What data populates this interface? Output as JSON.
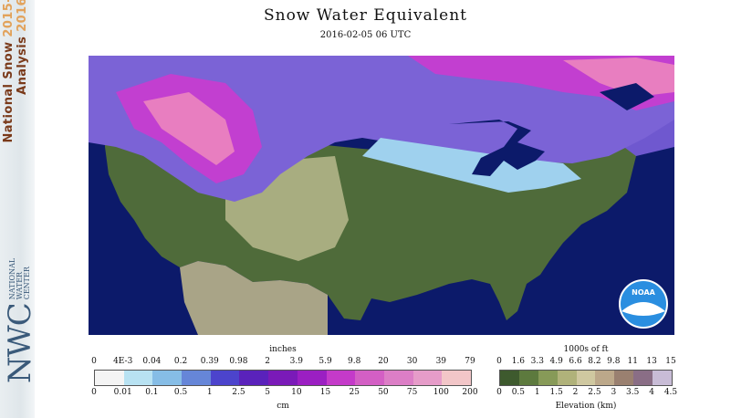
{
  "header": {
    "title": "Snow Water Equivalent",
    "datetime": "2016-02-05 06 UTC"
  },
  "sidebar": {
    "title_line1": "National Snow",
    "title_year1": "2015-",
    "title_line2": "Analysis",
    "title_year2": "2016",
    "org_abbr": "NWC",
    "org_line1": "NATIONAL",
    "org_line2": "WATER",
    "org_line3": "CENTER"
  },
  "map": {
    "logo_text": "NOAA",
    "colors": {
      "ocean": "#0c1a6a",
      "lowland": "#4f6b3a",
      "plains": "#a8ad80",
      "snow_light": "#9fd1ee",
      "snow_mid": "#7b63d6",
      "snow_heavy": "#c23fd0",
      "snow_deep": "#e87ec0"
    }
  },
  "swe_legend": {
    "top_unit": "inches",
    "top_labels": [
      "0",
      "4E-3",
      "0.04",
      "0.2",
      "0.39",
      "0.98",
      "2",
      "3.9",
      "5.9",
      "9.8",
      "20",
      "30",
      "39",
      "79"
    ],
    "bottom_unit": "cm",
    "bottom_labels": [
      "0",
      "0.01",
      "0.1",
      "0.5",
      "1",
      "2.5",
      "5",
      "10",
      "15",
      "25",
      "50",
      "75",
      "100",
      "200"
    ],
    "colors": [
      "#f4f4f4",
      "#b8e2f2",
      "#86bde6",
      "#6686d8",
      "#4c44cc",
      "#5a22bb",
      "#7a1ab8",
      "#9b1fc2",
      "#c43ac9",
      "#d35fc4",
      "#dc7ec6",
      "#e69cc9",
      "#f2c6c8"
    ]
  },
  "elev_legend": {
    "top_unit": "1000s of ft",
    "top_labels": [
      "0",
      "1.6",
      "3.3",
      "4.9",
      "6.6",
      "8.2",
      "9.8",
      "11",
      "13",
      "15"
    ],
    "bottom_unit": "Elevation (km)",
    "bottom_labels": [
      "0",
      "0.5",
      "1",
      "1.5",
      "2",
      "2.5",
      "3",
      "3.5",
      "4",
      "4.5"
    ],
    "colors": [
      "#3e5a2e",
      "#5d7a3e",
      "#879a58",
      "#b0b27a",
      "#cfc8a0",
      "#bca88a",
      "#9a8070",
      "#8a6e86",
      "#c8bcd6"
    ]
  }
}
